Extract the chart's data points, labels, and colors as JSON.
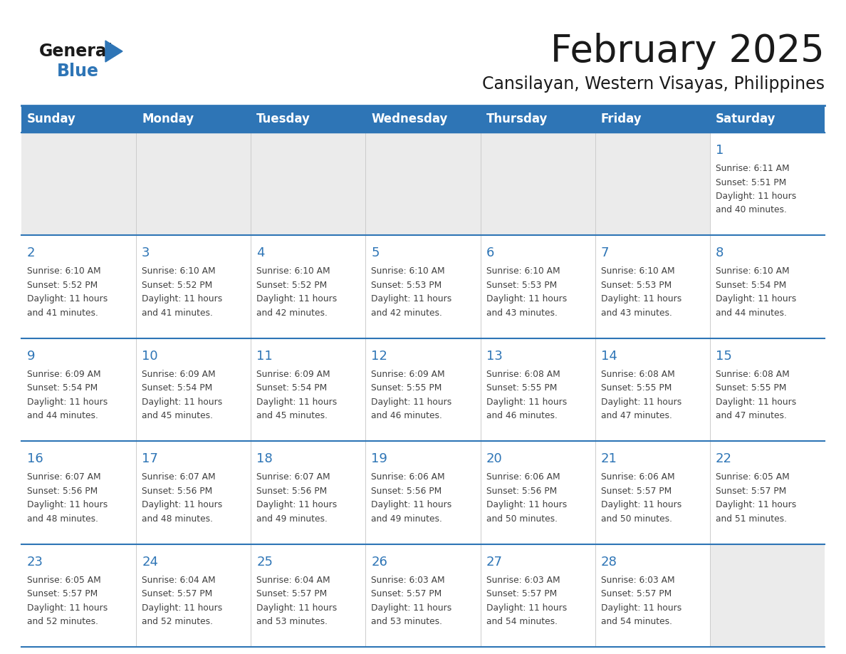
{
  "title": "February 2025",
  "subtitle": "Cansilayan, Western Visayas, Philippines",
  "header_color": "#2E75B6",
  "header_text_color": "#FFFFFF",
  "day_names": [
    "Sunday",
    "Monday",
    "Tuesday",
    "Wednesday",
    "Thursday",
    "Friday",
    "Saturday"
  ],
  "background_color": "#FFFFFF",
  "empty_cell_color": "#EBEBEB",
  "row_line_color": "#2E75B6",
  "date_color": "#2E75B6",
  "text_color": "#404040",
  "logo_general_color": "#1A1A1A",
  "logo_blue_color": "#2E75B6",
  "weeks": [
    {
      "days": [
        {
          "date": "",
          "sunrise": "",
          "sunset": "",
          "daylight_hours": "",
          "daylight_minutes": ""
        },
        {
          "date": "",
          "sunrise": "",
          "sunset": "",
          "daylight_hours": "",
          "daylight_minutes": ""
        },
        {
          "date": "",
          "sunrise": "",
          "sunset": "",
          "daylight_hours": "",
          "daylight_minutes": ""
        },
        {
          "date": "",
          "sunrise": "",
          "sunset": "",
          "daylight_hours": "",
          "daylight_minutes": ""
        },
        {
          "date": "",
          "sunrise": "",
          "sunset": "",
          "daylight_hours": "",
          "daylight_minutes": ""
        },
        {
          "date": "",
          "sunrise": "",
          "sunset": "",
          "daylight_hours": "",
          "daylight_minutes": ""
        },
        {
          "date": "1",
          "sunrise": "6:11 AM",
          "sunset": "5:51 PM",
          "daylight_hours": "11 hours",
          "daylight_minutes": "and 40 minutes."
        }
      ]
    },
    {
      "days": [
        {
          "date": "2",
          "sunrise": "6:10 AM",
          "sunset": "5:52 PM",
          "daylight_hours": "11 hours",
          "daylight_minutes": "and 41 minutes."
        },
        {
          "date": "3",
          "sunrise": "6:10 AM",
          "sunset": "5:52 PM",
          "daylight_hours": "11 hours",
          "daylight_minutes": "and 41 minutes."
        },
        {
          "date": "4",
          "sunrise": "6:10 AM",
          "sunset": "5:52 PM",
          "daylight_hours": "11 hours",
          "daylight_minutes": "and 42 minutes."
        },
        {
          "date": "5",
          "sunrise": "6:10 AM",
          "sunset": "5:53 PM",
          "daylight_hours": "11 hours",
          "daylight_minutes": "and 42 minutes."
        },
        {
          "date": "6",
          "sunrise": "6:10 AM",
          "sunset": "5:53 PM",
          "daylight_hours": "11 hours",
          "daylight_minutes": "and 43 minutes."
        },
        {
          "date": "7",
          "sunrise": "6:10 AM",
          "sunset": "5:53 PM",
          "daylight_hours": "11 hours",
          "daylight_minutes": "and 43 minutes."
        },
        {
          "date": "8",
          "sunrise": "6:10 AM",
          "sunset": "5:54 PM",
          "daylight_hours": "11 hours",
          "daylight_minutes": "and 44 minutes."
        }
      ]
    },
    {
      "days": [
        {
          "date": "9",
          "sunrise": "6:09 AM",
          "sunset": "5:54 PM",
          "daylight_hours": "11 hours",
          "daylight_minutes": "and 44 minutes."
        },
        {
          "date": "10",
          "sunrise": "6:09 AM",
          "sunset": "5:54 PM",
          "daylight_hours": "11 hours",
          "daylight_minutes": "and 45 minutes."
        },
        {
          "date": "11",
          "sunrise": "6:09 AM",
          "sunset": "5:54 PM",
          "daylight_hours": "11 hours",
          "daylight_minutes": "and 45 minutes."
        },
        {
          "date": "12",
          "sunrise": "6:09 AM",
          "sunset": "5:55 PM",
          "daylight_hours": "11 hours",
          "daylight_minutes": "and 46 minutes."
        },
        {
          "date": "13",
          "sunrise": "6:08 AM",
          "sunset": "5:55 PM",
          "daylight_hours": "11 hours",
          "daylight_minutes": "and 46 minutes."
        },
        {
          "date": "14",
          "sunrise": "6:08 AM",
          "sunset": "5:55 PM",
          "daylight_hours": "11 hours",
          "daylight_minutes": "and 47 minutes."
        },
        {
          "date": "15",
          "sunrise": "6:08 AM",
          "sunset": "5:55 PM",
          "daylight_hours": "11 hours",
          "daylight_minutes": "and 47 minutes."
        }
      ]
    },
    {
      "days": [
        {
          "date": "16",
          "sunrise": "6:07 AM",
          "sunset": "5:56 PM",
          "daylight_hours": "11 hours",
          "daylight_minutes": "and 48 minutes."
        },
        {
          "date": "17",
          "sunrise": "6:07 AM",
          "sunset": "5:56 PM",
          "daylight_hours": "11 hours",
          "daylight_minutes": "and 48 minutes."
        },
        {
          "date": "18",
          "sunrise": "6:07 AM",
          "sunset": "5:56 PM",
          "daylight_hours": "11 hours",
          "daylight_minutes": "and 49 minutes."
        },
        {
          "date": "19",
          "sunrise": "6:06 AM",
          "sunset": "5:56 PM",
          "daylight_hours": "11 hours",
          "daylight_minutes": "and 49 minutes."
        },
        {
          "date": "20",
          "sunrise": "6:06 AM",
          "sunset": "5:56 PM",
          "daylight_hours": "11 hours",
          "daylight_minutes": "and 50 minutes."
        },
        {
          "date": "21",
          "sunrise": "6:06 AM",
          "sunset": "5:57 PM",
          "daylight_hours": "11 hours",
          "daylight_minutes": "and 50 minutes."
        },
        {
          "date": "22",
          "sunrise": "6:05 AM",
          "sunset": "5:57 PM",
          "daylight_hours": "11 hours",
          "daylight_minutes": "and 51 minutes."
        }
      ]
    },
    {
      "days": [
        {
          "date": "23",
          "sunrise": "6:05 AM",
          "sunset": "5:57 PM",
          "daylight_hours": "11 hours",
          "daylight_minutes": "and 52 minutes."
        },
        {
          "date": "24",
          "sunrise": "6:04 AM",
          "sunset": "5:57 PM",
          "daylight_hours": "11 hours",
          "daylight_minutes": "and 52 minutes."
        },
        {
          "date": "25",
          "sunrise": "6:04 AM",
          "sunset": "5:57 PM",
          "daylight_hours": "11 hours",
          "daylight_minutes": "and 53 minutes."
        },
        {
          "date": "26",
          "sunrise": "6:03 AM",
          "sunset": "5:57 PM",
          "daylight_hours": "11 hours",
          "daylight_minutes": "and 53 minutes."
        },
        {
          "date": "27",
          "sunrise": "6:03 AM",
          "sunset": "5:57 PM",
          "daylight_hours": "11 hours",
          "daylight_minutes": "and 54 minutes."
        },
        {
          "date": "28",
          "sunrise": "6:03 AM",
          "sunset": "5:57 PM",
          "daylight_hours": "11 hours",
          "daylight_minutes": "and 54 minutes."
        },
        {
          "date": "",
          "sunrise": "",
          "sunset": "",
          "daylight_hours": "",
          "daylight_minutes": ""
        }
      ]
    }
  ]
}
